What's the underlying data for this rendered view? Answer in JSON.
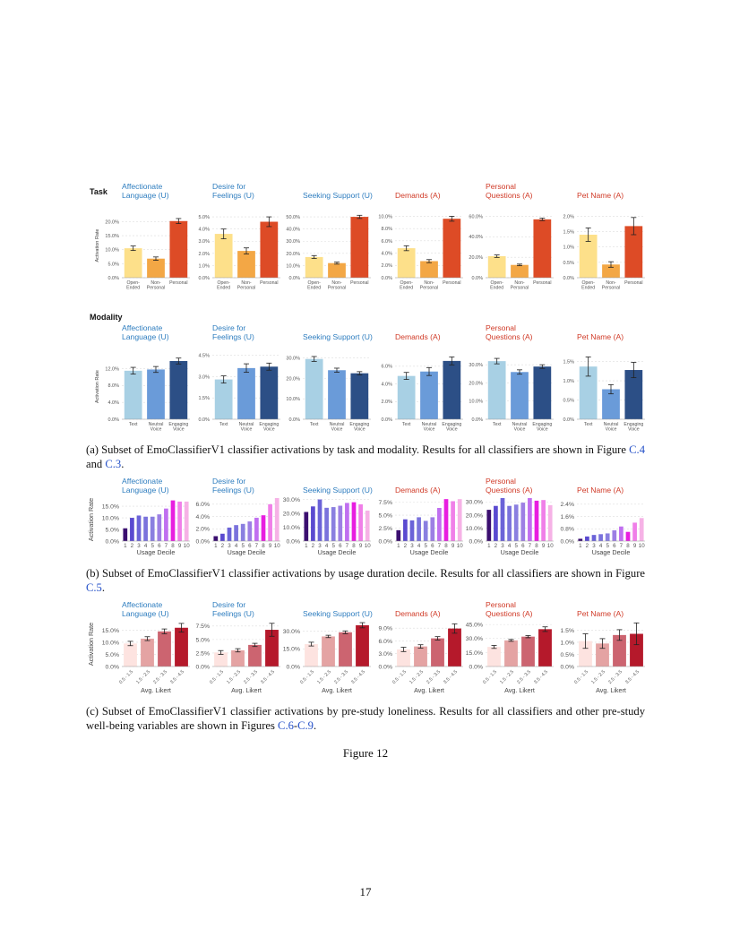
{
  "figure": {
    "row_a_task_label": "Task",
    "row_a_modality_label": "Modality",
    "caption_a": "(a) Subset of EmoClassifierV1 classifier activations by task and modality. Results for all classifiers are shown in Figure",
    "caption_a_ref1": "C.4",
    "caption_a_mid": "and",
    "caption_a_ref2": "C.3",
    "caption_b": "(b) Subset of EmoClassifierV1 classifier activations by usage duration decile. Results for all classifiers are shown in Figure",
    "caption_b_ref": "C.5",
    "caption_c": "(c) Subset of EmoClassifierV1 classifier activations by pre-study loneliness. Results for all classifiers and other pre-study well-being variables are shown in Figures",
    "caption_c_ref1": "C.6",
    "caption_c_ref2": "C.9",
    "figure_label": "Figure 12",
    "page_number": "17"
  },
  "chart_data": [
    {
      "group": "task",
      "type": "bar",
      "ylabel": "Activation Rate",
      "categories": [
        "Open-\nEnded",
        "Non-\nPersonal",
        "Personal"
      ],
      "colors": [
        "#fde08a",
        "#f3a745",
        "#dd4b26"
      ],
      "panels": [
        {
          "title": [
            "Affectionate",
            "Language (U)"
          ],
          "title_color": "#2e7dbf",
          "ticks": [
            "0.0%",
            "5.0%",
            "10.0%",
            "15.0%",
            "20.0%"
          ],
          "tickvals": [
            0,
            5,
            10,
            15,
            20
          ],
          "ylim": [
            0,
            23
          ],
          "values": [
            10.5,
            6.8,
            20.2
          ],
          "errors": [
            0.8,
            0.6,
            0.9
          ]
        },
        {
          "title": [
            "Desire for",
            "Feelings (U)"
          ],
          "title_color": "#2e7dbf",
          "ticks": [
            "0.0%",
            "1.0%",
            "2.0%",
            "3.0%",
            "4.0%",
            "5.0%"
          ],
          "tickvals": [
            0,
            1,
            2,
            3,
            4,
            5
          ],
          "ylim": [
            0,
            5.3
          ],
          "values": [
            3.6,
            2.2,
            4.6
          ],
          "errors": [
            0.4,
            0.25,
            0.4
          ]
        },
        {
          "title": [
            "Seeking Support (U)"
          ],
          "title_color": "#2e7dbf",
          "ticks": [
            "0.0%",
            "10.0%",
            "20.0%",
            "30.0%",
            "40.0%",
            "50.0%"
          ],
          "tickvals": [
            0,
            10,
            20,
            30,
            40,
            50
          ],
          "ylim": [
            0,
            53
          ],
          "values": [
            17,
            12,
            50
          ],
          "errors": [
            1.2,
            0.8,
            1.3
          ]
        },
        {
          "title": [
            "Demands (A)"
          ],
          "title_color": "#d03a27",
          "ticks": [
            "0.0%",
            "2.0%",
            "4.0%",
            "6.0%",
            "8.0%",
            "10.0%"
          ],
          "tickvals": [
            0,
            2,
            4,
            6,
            8,
            10
          ],
          "ylim": [
            0,
            10.5
          ],
          "values": [
            4.8,
            2.7,
            9.6
          ],
          "errors": [
            0.4,
            0.25,
            0.4
          ]
        },
        {
          "title": [
            "Personal",
            "Questions (A)"
          ],
          "title_color": "#d03a27",
          "ticks": [
            "0.0%",
            "20.0%",
            "40.0%",
            "60.0%"
          ],
          "tickvals": [
            0,
            20,
            40,
            60
          ],
          "ylim": [
            0,
            63
          ],
          "values": [
            21,
            12.5,
            57
          ],
          "errors": [
            1.2,
            0.8,
            1.2
          ]
        },
        {
          "title": [
            "Pet Name (A)"
          ],
          "title_color": "#d03a27",
          "ticks": [
            "0.0%",
            "0.5%",
            "1.0%",
            "1.5%",
            "2.0%"
          ],
          "tickvals": [
            0,
            0.5,
            1,
            1.5,
            2
          ],
          "ylim": [
            0,
            2.1
          ],
          "values": [
            1.4,
            0.43,
            1.68
          ],
          "errors": [
            0.22,
            0.09,
            0.28
          ]
        }
      ]
    },
    {
      "group": "modality",
      "type": "bar",
      "ylabel": "Activation Rate",
      "categories": [
        "Text",
        "Neutral\nVoice",
        "Engaging\nVoice"
      ],
      "colors": [
        "#a8d0e4",
        "#6a9bd9",
        "#2c4f86"
      ],
      "panels": [
        {
          "title": [
            "Affectionate",
            "Language (U)"
          ],
          "title_color": "#2e7dbf",
          "ticks": [
            "0.0%",
            "4.0%",
            "8.0%",
            "12.0%"
          ],
          "tickvals": [
            0,
            4,
            8,
            12
          ],
          "ylim": [
            0,
            15.5
          ],
          "values": [
            11.5,
            11.8,
            13.8
          ],
          "errors": [
            0.8,
            0.7,
            0.7
          ]
        },
        {
          "title": [
            "Desire for",
            "Feelings (U)"
          ],
          "title_color": "#2e7dbf",
          "ticks": [
            "0.0%",
            "1.5%",
            "3.0%",
            "4.5%"
          ],
          "tickvals": [
            0,
            1.5,
            3,
            4.5
          ],
          "ylim": [
            0,
            4.6
          ],
          "values": [
            2.8,
            3.6,
            3.7
          ],
          "errors": [
            0.25,
            0.3,
            0.25
          ]
        },
        {
          "title": [
            "Seeking Support (U)"
          ],
          "title_color": "#2e7dbf",
          "ticks": [
            "0.0%",
            "10.0%",
            "20.0%",
            "30.0%"
          ],
          "tickvals": [
            0,
            10,
            20,
            30
          ],
          "ylim": [
            0,
            32
          ],
          "values": [
            29.5,
            24,
            22.5
          ],
          "errors": [
            1.2,
            1.0,
            0.8
          ]
        },
        {
          "title": [
            "Demands (A)"
          ],
          "title_color": "#d03a27",
          "ticks": [
            "0.0%",
            "2.0%",
            "4.0%",
            "6.0%"
          ],
          "tickvals": [
            0,
            2,
            4,
            6
          ],
          "ylim": [
            0,
            7.4
          ],
          "values": [
            4.9,
            5.4,
            6.6
          ],
          "errors": [
            0.4,
            0.45,
            0.45
          ]
        },
        {
          "title": [
            "Personal",
            "Questions (A)"
          ],
          "title_color": "#d03a27",
          "ticks": [
            "0.0%",
            "10.0%",
            "20.0%",
            "30.0%"
          ],
          "tickvals": [
            0,
            10,
            20,
            30
          ],
          "ylim": [
            0,
            36
          ],
          "values": [
            32,
            26,
            29
          ],
          "errors": [
            1.5,
            1.2,
            1.0
          ]
        },
        {
          "title": [
            "Pet Name (A)"
          ],
          "title_color": "#d03a27",
          "ticks": [
            "0.0%",
            "0.5%",
            "1.0%",
            "1.5%"
          ],
          "tickvals": [
            0,
            0.5,
            1,
            1.5
          ],
          "ylim": [
            0,
            1.7
          ],
          "values": [
            1.37,
            0.78,
            1.28
          ],
          "errors": [
            0.25,
            0.12,
            0.2
          ]
        }
      ]
    },
    {
      "group": "usage_decile",
      "type": "bar",
      "ylabel": "Activation Rate",
      "xlabel": "Usage Decile",
      "categories": [
        "1",
        "2",
        "3",
        "4",
        "5",
        "6",
        "7",
        "8",
        "9",
        "10"
      ],
      "colors": [
        "#3b0f70",
        "#5a4ad0",
        "#6b63d8",
        "#7a72dc",
        "#8a7fe0",
        "#9d7fe4",
        "#c06ff0",
        "#e81ee0",
        "#f07fe8",
        "#f6b2e6"
      ],
      "panels": [
        {
          "title": [
            "Affectionate",
            "Language (U)"
          ],
          "title_color": "#2e7dbf",
          "ticks": [
            "0.0%",
            "5.0%",
            "10.0%",
            "15.0%"
          ],
          "tickvals": [
            0,
            5,
            10,
            15
          ],
          "ylim": [
            0,
            18.5
          ],
          "values": [
            5.5,
            10,
            11,
            10.5,
            10.5,
            11.5,
            14,
            17.5,
            17,
            17
          ]
        },
        {
          "title": [
            "Desire for",
            "Feelings (U)"
          ],
          "title_color": "#2e7dbf",
          "ticks": [
            "0.0%",
            "2.0%",
            "4.0%",
            "6.0%"
          ],
          "tickvals": [
            0,
            2,
            4,
            6
          ],
          "ylim": [
            0,
            7
          ],
          "values": [
            0.8,
            1.2,
            2.2,
            2.6,
            2.8,
            3.2,
            3.8,
            4.2,
            6,
            7
          ]
        },
        {
          "title": [
            "Seeking Support (U)"
          ],
          "title_color": "#2e7dbf",
          "ticks": [
            "0.0%",
            "10.0%",
            "20.0%",
            "30.0%"
          ],
          "tickvals": [
            0,
            10,
            20,
            30
          ],
          "ylim": [
            0,
            31
          ],
          "values": [
            21,
            25,
            30,
            24,
            24.5,
            25.5,
            27.5,
            28,
            26.5,
            22
          ]
        },
        {
          "title": [
            "Demands (A)"
          ],
          "title_color": "#d03a27",
          "ticks": [
            "0.0%",
            "2.5%",
            "5.0%",
            "7.5%"
          ],
          "tickvals": [
            0,
            2.5,
            5,
            7.5
          ],
          "ylim": [
            0,
            8.3
          ],
          "values": [
            2.1,
            4.2,
            4,
            4.6,
            3.9,
            4.6,
            6.4,
            8.1,
            7.7,
            8.1
          ]
        },
        {
          "title": [
            "Personal",
            "Questions (A)"
          ],
          "title_color": "#d03a27",
          "ticks": [
            "0.0%",
            "10.0%",
            "20.0%",
            "30.0%"
          ],
          "tickvals": [
            0,
            10,
            20,
            30
          ],
          "ylim": [
            0,
            33
          ],
          "values": [
            24,
            27,
            33,
            27,
            28,
            29.5,
            33,
            31,
            31.5,
            27.5
          ]
        },
        {
          "title": [
            "Pet Name (A)"
          ],
          "title_color": "#d03a27",
          "ticks": [
            "0.0%",
            "0.8%",
            "1.6%",
            "2.4%"
          ],
          "tickvals": [
            0,
            0.8,
            1.6,
            2.4
          ],
          "ylim": [
            0,
            2.8
          ],
          "values": [
            0.15,
            0.3,
            0.4,
            0.45,
            0.5,
            0.7,
            0.95,
            0.6,
            1.2,
            1.5
          ]
        }
      ]
    },
    {
      "group": "loneliness",
      "type": "bar",
      "ylabel": "Activation Rate",
      "xlabel": "Avg. Likert",
      "categories": [
        "0.5 - 1.5",
        "1.5 - 2.5",
        "2.5 - 3.5",
        "3.5 - 4.5"
      ],
      "colors": [
        "#fde3e0",
        "#e4a3a3",
        "#cc6470",
        "#b5192b"
      ],
      "panels": [
        {
          "title": [
            "Affectionate",
            "Language (U)"
          ],
          "title_color": "#2e7dbf",
          "ticks": [
            "0.0%",
            "5.0%",
            "10.0%",
            "15.0%"
          ],
          "tickvals": [
            0,
            5,
            10,
            15
          ],
          "ylim": [
            0,
            18.5
          ],
          "values": [
            9.5,
            11.5,
            14.5,
            16
          ],
          "errors": [
            0.9,
            0.8,
            1.0,
            1.8
          ]
        },
        {
          "title": [
            "Desire for",
            "Feelings (U)"
          ],
          "title_color": "#2e7dbf",
          "ticks": [
            "0.0%",
            "2.5%",
            "5.0%",
            "7.5%"
          ],
          "tickvals": [
            0,
            2.5,
            5,
            7.5
          ],
          "ylim": [
            0,
            8.3
          ],
          "values": [
            2.6,
            3.0,
            4.0,
            6.8
          ],
          "errors": [
            0.35,
            0.3,
            0.3,
            1.2
          ]
        },
        {
          "title": [
            "Seeking Support (U)"
          ],
          "title_color": "#2e7dbf",
          "ticks": [
            "0.0%",
            "15.0%",
            "30.0%"
          ],
          "tickvals": [
            0,
            15,
            30
          ],
          "ylim": [
            0,
            38
          ],
          "values": [
            19,
            25.5,
            29,
            35
          ],
          "errors": [
            1.6,
            1.0,
            1.2,
            2.2
          ]
        },
        {
          "title": [
            "Demands (A)"
          ],
          "title_color": "#d03a27",
          "ticks": [
            "0.0%",
            "3.0%",
            "6.0%",
            "9.0%"
          ],
          "tickvals": [
            0,
            3,
            6,
            9
          ],
          "ylim": [
            0,
            10.5
          ],
          "values": [
            4.0,
            4.7,
            6.6,
            8.9
          ],
          "errors": [
            0.5,
            0.4,
            0.4,
            1.1
          ]
        },
        {
          "title": [
            "Personal",
            "Questions (A)"
          ],
          "title_color": "#d03a27",
          "ticks": [
            "0.0%",
            "15.0%",
            "30.0%",
            "45.0%"
          ],
          "tickvals": [
            0,
            15,
            30,
            45
          ],
          "ylim": [
            0,
            48
          ],
          "values": [
            21,
            28,
            32,
            40
          ],
          "errors": [
            1.6,
            1.0,
            1.2,
            2.5
          ]
        },
        {
          "title": [
            "Pet Name (A)"
          ],
          "title_color": "#d03a27",
          "ticks": [
            "0.0%",
            "0.5%",
            "1.0%",
            "1.5%"
          ],
          "tickvals": [
            0,
            0.5,
            1,
            1.5
          ],
          "ylim": [
            0,
            1.85
          ],
          "values": [
            1.05,
            0.95,
            1.3,
            1.35
          ],
          "errors": [
            0.3,
            0.2,
            0.22,
            0.45
          ]
        }
      ]
    }
  ]
}
